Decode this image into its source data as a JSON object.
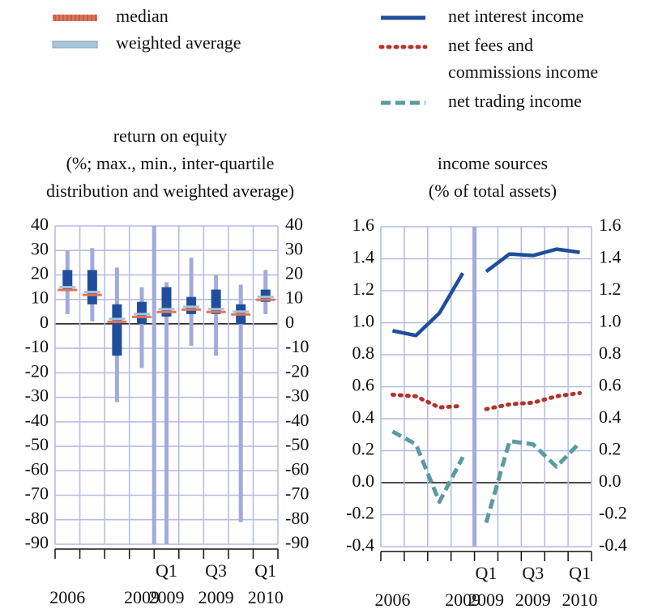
{
  "chart_data": [
    {
      "type": "box",
      "title": "return on equity",
      "subtitle": [
        "(%; max., min., inter-quartile",
        "distribution and weighted average)"
      ],
      "categories": [
        "2006",
        null,
        null,
        "2009",
        "Q1 2009",
        null,
        "Q3 2009",
        null,
        "Q1 2010"
      ],
      "max": [
        30,
        31,
        23,
        15,
        17,
        27,
        20,
        16,
        22
      ],
      "q3": [
        22,
        22,
        8,
        9,
        15,
        11,
        14,
        8,
        14
      ],
      "q1": [
        14,
        8,
        -13,
        0,
        3,
        4,
        4,
        0,
        9
      ],
      "min": [
        4,
        1,
        -32,
        -18,
        -90,
        -9,
        -13,
        -81,
        4
      ],
      "box_color": "#1f4e9c",
      "whisker_color": "#a3aadb",
      "series": [
        {
          "name": "median",
          "color": "#e0745a",
          "values": [
            15,
            13,
            2,
            4,
            6,
            7,
            6,
            5,
            11
          ]
        },
        {
          "name": "weighted average",
          "color": "#a8c4d8",
          "values": [
            15,
            13,
            2,
            4,
            6,
            7,
            6,
            5,
            11
          ]
        }
      ],
      "ylim": [
        -90,
        40
      ],
      "yticks": [
        40,
        30,
        20,
        10,
        0,
        -10,
        -20,
        -30,
        -40,
        -50,
        -60,
        -70,
        -80,
        -90
      ],
      "grid": true
    },
    {
      "type": "line",
      "title": "income sources",
      "subtitle": [
        "(% of total assets)"
      ],
      "categories": [
        "2006",
        null,
        null,
        "2009",
        "Q1 2009",
        null,
        "Q3 2009",
        null,
        "Q1 2010"
      ],
      "series": [
        {
          "name": "net interest income",
          "color": "#1f4e9c",
          "style": "solid",
          "values": [
            0.95,
            0.92,
            1.06,
            1.31,
            1.32,
            1.43,
            1.42,
            1.46,
            1.44
          ]
        },
        {
          "name": "net fees and commissions income",
          "color": "#b5322a",
          "style": "dotted",
          "values": [
            0.55,
            0.54,
            0.47,
            0.48,
            0.46,
            0.49,
            0.5,
            0.54,
            0.56
          ]
        },
        {
          "name": "net trading income",
          "color": "#5b9aa0",
          "style": "dashed",
          "values": [
            0.32,
            0.24,
            -0.12,
            0.16,
            -0.25,
            0.26,
            0.24,
            0.1,
            0.25
          ]
        }
      ],
      "ylim": [
        -0.4,
        1.6
      ],
      "yticks": [
        1.6,
        1.4,
        1.2,
        {
          "value": 1,
          "label": "1.0"
        },
        0.8,
        0.6,
        0.4,
        0.2,
        {
          "value": 0,
          "label": "0.0"
        },
        -0.2,
        -0.4
      ],
      "grid": true
    }
  ]
}
